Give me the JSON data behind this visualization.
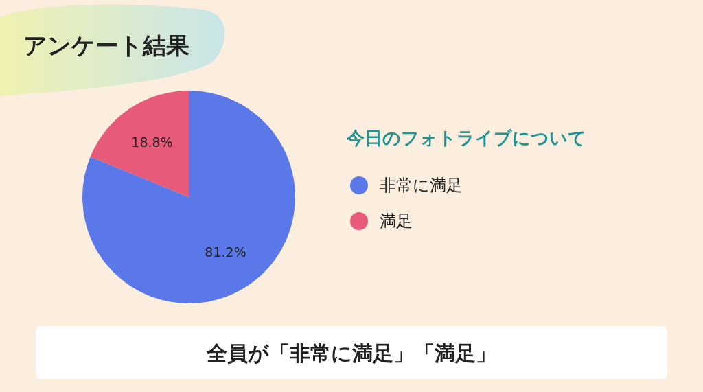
{
  "chart_data": {
    "type": "pie",
    "title": "アンケート結果",
    "legend_title": "今日のフォトライブについて",
    "categories": [
      "非常に満足",
      "満足"
    ],
    "values": [
      81.2,
      18.8
    ],
    "colors": [
      "#5b78e8",
      "#e85a7a"
    ],
    "value_labels": [
      "81.2%",
      "18.8%"
    ],
    "legend": "right",
    "annotations": [
      "全員が「非常に満足」「満足」"
    ]
  }
}
